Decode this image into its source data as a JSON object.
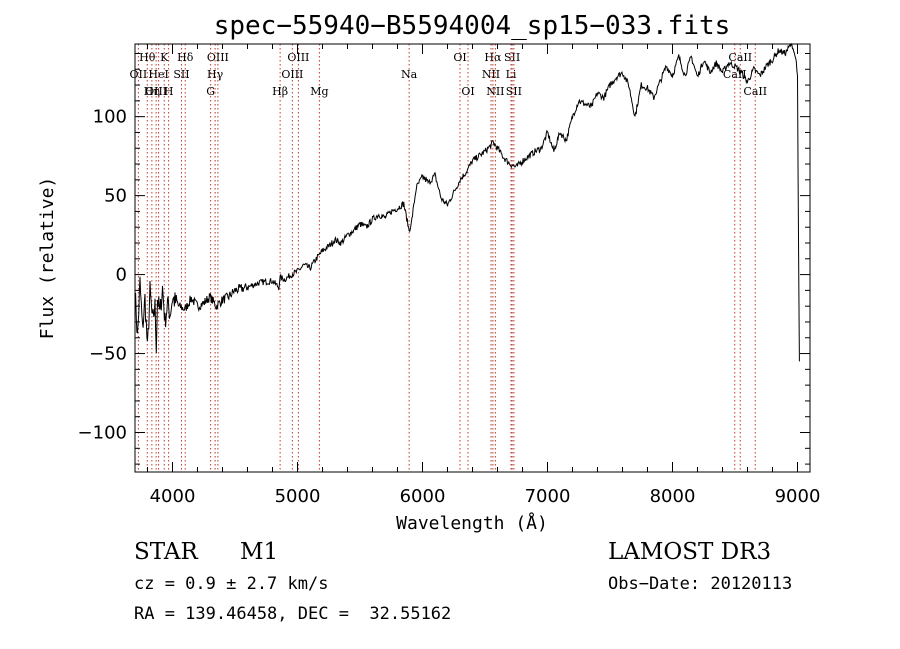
{
  "chart_data": {
    "type": "line",
    "title": "spec−55940−B5594004_sp15−033.fits",
    "xlabel": "Wavelength (Å)",
    "ylabel": "Flux (relative)",
    "xlim": [
      3700,
      9100
    ],
    "ylim": [
      -125,
      146
    ],
    "xticks": [
      4000,
      5000,
      6000,
      7000,
      8000,
      9000
    ],
    "xtick_labels": [
      "4000",
      "5000",
      "6000",
      "7000",
      "8000",
      "9000"
    ],
    "yticks": [
      -100,
      -50,
      0,
      50,
      100
    ],
    "ytick_labels": [
      "−100",
      "−50",
      "0",
      "50",
      "100"
    ],
    "series": [
      {
        "name": "flux",
        "x": [
          3700,
          3720,
          3740,
          3760,
          3780,
          3800,
          3820,
          3840,
          3860,
          3870,
          3880,
          3900,
          3920,
          3940,
          3960,
          3980,
          4000,
          4050,
          4100,
          4150,
          4200,
          4250,
          4300,
          4350,
          4400,
          4450,
          4500,
          4600,
          4700,
          4800,
          4850,
          4861,
          4900,
          4950,
          5000,
          5050,
          5100,
          5150,
          5200,
          5250,
          5300,
          5350,
          5400,
          5450,
          5500,
          5550,
          5600,
          5650,
          5700,
          5750,
          5800,
          5850,
          5893,
          5910,
          5950,
          6000,
          6050,
          6100,
          6150,
          6200,
          6250,
          6300,
          6350,
          6400,
          6450,
          6500,
          6550,
          6563,
          6600,
          6650,
          6700,
          6750,
          6800,
          6850,
          6900,
          6950,
          7000,
          7050,
          7100,
          7150,
          7200,
          7250,
          7300,
          7350,
          7400,
          7450,
          7500,
          7550,
          7600,
          7650,
          7700,
          7750,
          7800,
          7850,
          7900,
          7950,
          8000,
          8050,
          8100,
          8150,
          8200,
          8250,
          8300,
          8350,
          8400,
          8450,
          8500,
          8550,
          8600,
          8650,
          8700,
          8750,
          8800,
          8850,
          8900,
          8950,
          8970,
          8990,
          9000,
          9010,
          9015
        ],
        "y": [
          -10,
          -40,
          -5,
          -35,
          -15,
          -48,
          -10,
          -30,
          -20,
          -45,
          -15,
          -25,
          -8,
          -30,
          -18,
          -25,
          -15,
          -20,
          -22,
          -15,
          -20,
          -18,
          -14,
          -20,
          -16,
          -14,
          -10,
          -8,
          -5,
          -4,
          -8,
          -2,
          -3,
          0,
          2,
          6,
          4,
          10,
          15,
          18,
          22,
          20,
          25,
          28,
          32,
          30,
          35,
          38,
          36,
          40,
          42,
          45,
          28,
          32,
          55,
          62,
          58,
          63,
          48,
          44,
          52,
          60,
          65,
          72,
          75,
          78,
          82,
          84,
          80,
          74,
          70,
          68,
          72,
          75,
          78,
          80,
          90,
          78,
          90,
          85,
          100,
          110,
          108,
          106,
          115,
          112,
          120,
          125,
          128,
          120,
          100,
          120,
          118,
          112,
          122,
          132,
          126,
          138,
          126,
          138,
          125,
          136,
          128,
          134,
          128,
          134,
          132,
          128,
          122,
          130,
          126,
          132,
          136,
          142,
          140,
          146,
          142,
          135,
          125,
          -5,
          -55
        ]
      }
    ],
    "line_markers": [
      {
        "name": "Hθ",
        "x": 3798,
        "row": 0
      },
      {
        "name": "OII",
        "x": 3727,
        "row": 1
      },
      {
        "name": "OIII",
        "x": 3869,
        "row": 2
      },
      {
        "name": "Hη",
        "x": 3835,
        "row": 2
      },
      {
        "name": "K",
        "x": 3934,
        "row": 0
      },
      {
        "name": "H",
        "x": 3969,
        "row": 2
      },
      {
        "name": "HeI",
        "x": 3889,
        "row": 1
      },
      {
        "name": "SII",
        "x": 4072,
        "row": 1
      },
      {
        "name": "Hδ",
        "x": 4102,
        "row": 0
      },
      {
        "name": "OIII",
        "x": 4363,
        "row": 0
      },
      {
        "name": "Hγ",
        "x": 4341,
        "row": 1
      },
      {
        "name": "G",
        "x": 4305,
        "row": 2
      },
      {
        "name": "Hβ",
        "x": 4861,
        "row": 2
      },
      {
        "name": "OIII",
        "x": 5007,
        "row": 0
      },
      {
        "name": "OIII",
        "x": 4959,
        "row": 1
      },
      {
        "name": "Mg",
        "x": 5175,
        "row": 2
      },
      {
        "name": "Na",
        "x": 5893,
        "row": 1
      },
      {
        "name": "OI",
        "x": 6300,
        "row": 0
      },
      {
        "name": "OI",
        "x": 6364,
        "row": 2
      },
      {
        "name": "Hα",
        "x": 6563,
        "row": 0
      },
      {
        "name": "SII",
        "x": 6717,
        "row": 0
      },
      {
        "name": "NII",
        "x": 6548,
        "row": 1
      },
      {
        "name": "Li",
        "x": 6708,
        "row": 1
      },
      {
        "name": "NII",
        "x": 6583,
        "row": 2
      },
      {
        "name": "SII",
        "x": 6731,
        "row": 2
      },
      {
        "name": "CaII",
        "x": 8542,
        "row": 0
      },
      {
        "name": "CaII",
        "x": 8498,
        "row": 1
      },
      {
        "name": "CaII",
        "x": 8662,
        "row": 2
      }
    ]
  },
  "info": {
    "object_class": "STAR",
    "subclass": "M1",
    "cz": "cz = 0.9 ± 2.7 km/s",
    "coords": "RA = 139.46458, DEC =  32.55162",
    "survey": "LAMOST DR3",
    "obs_date": "Obs−Date: 20120113"
  }
}
